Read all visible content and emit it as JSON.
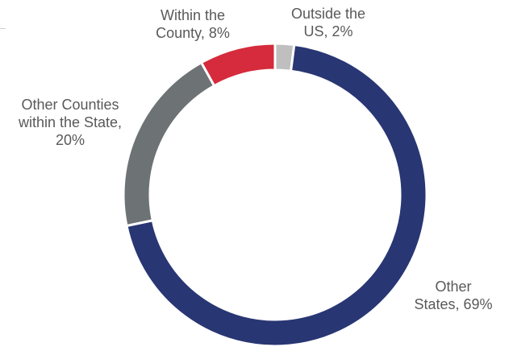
{
  "chart_data": {
    "type": "pie",
    "donut": true,
    "legend": "none",
    "slices": [
      {
        "lines": [
          "Outside the",
          "US, 2%"
        ],
        "value": 2,
        "color": "#bfbfbf"
      },
      {
        "lines": [
          "Other",
          "States, 69%"
        ],
        "value": 69,
        "color": "#283673"
      },
      {
        "lines": [
          "Other Counties",
          "within the State,",
          "20%"
        ],
        "value": 20,
        "color": "#6d7275"
      },
      {
        "lines": [
          "Within the",
          "County, 8%"
        ],
        "value": 8,
        "color": "#d52b3c"
      }
    ]
  }
}
